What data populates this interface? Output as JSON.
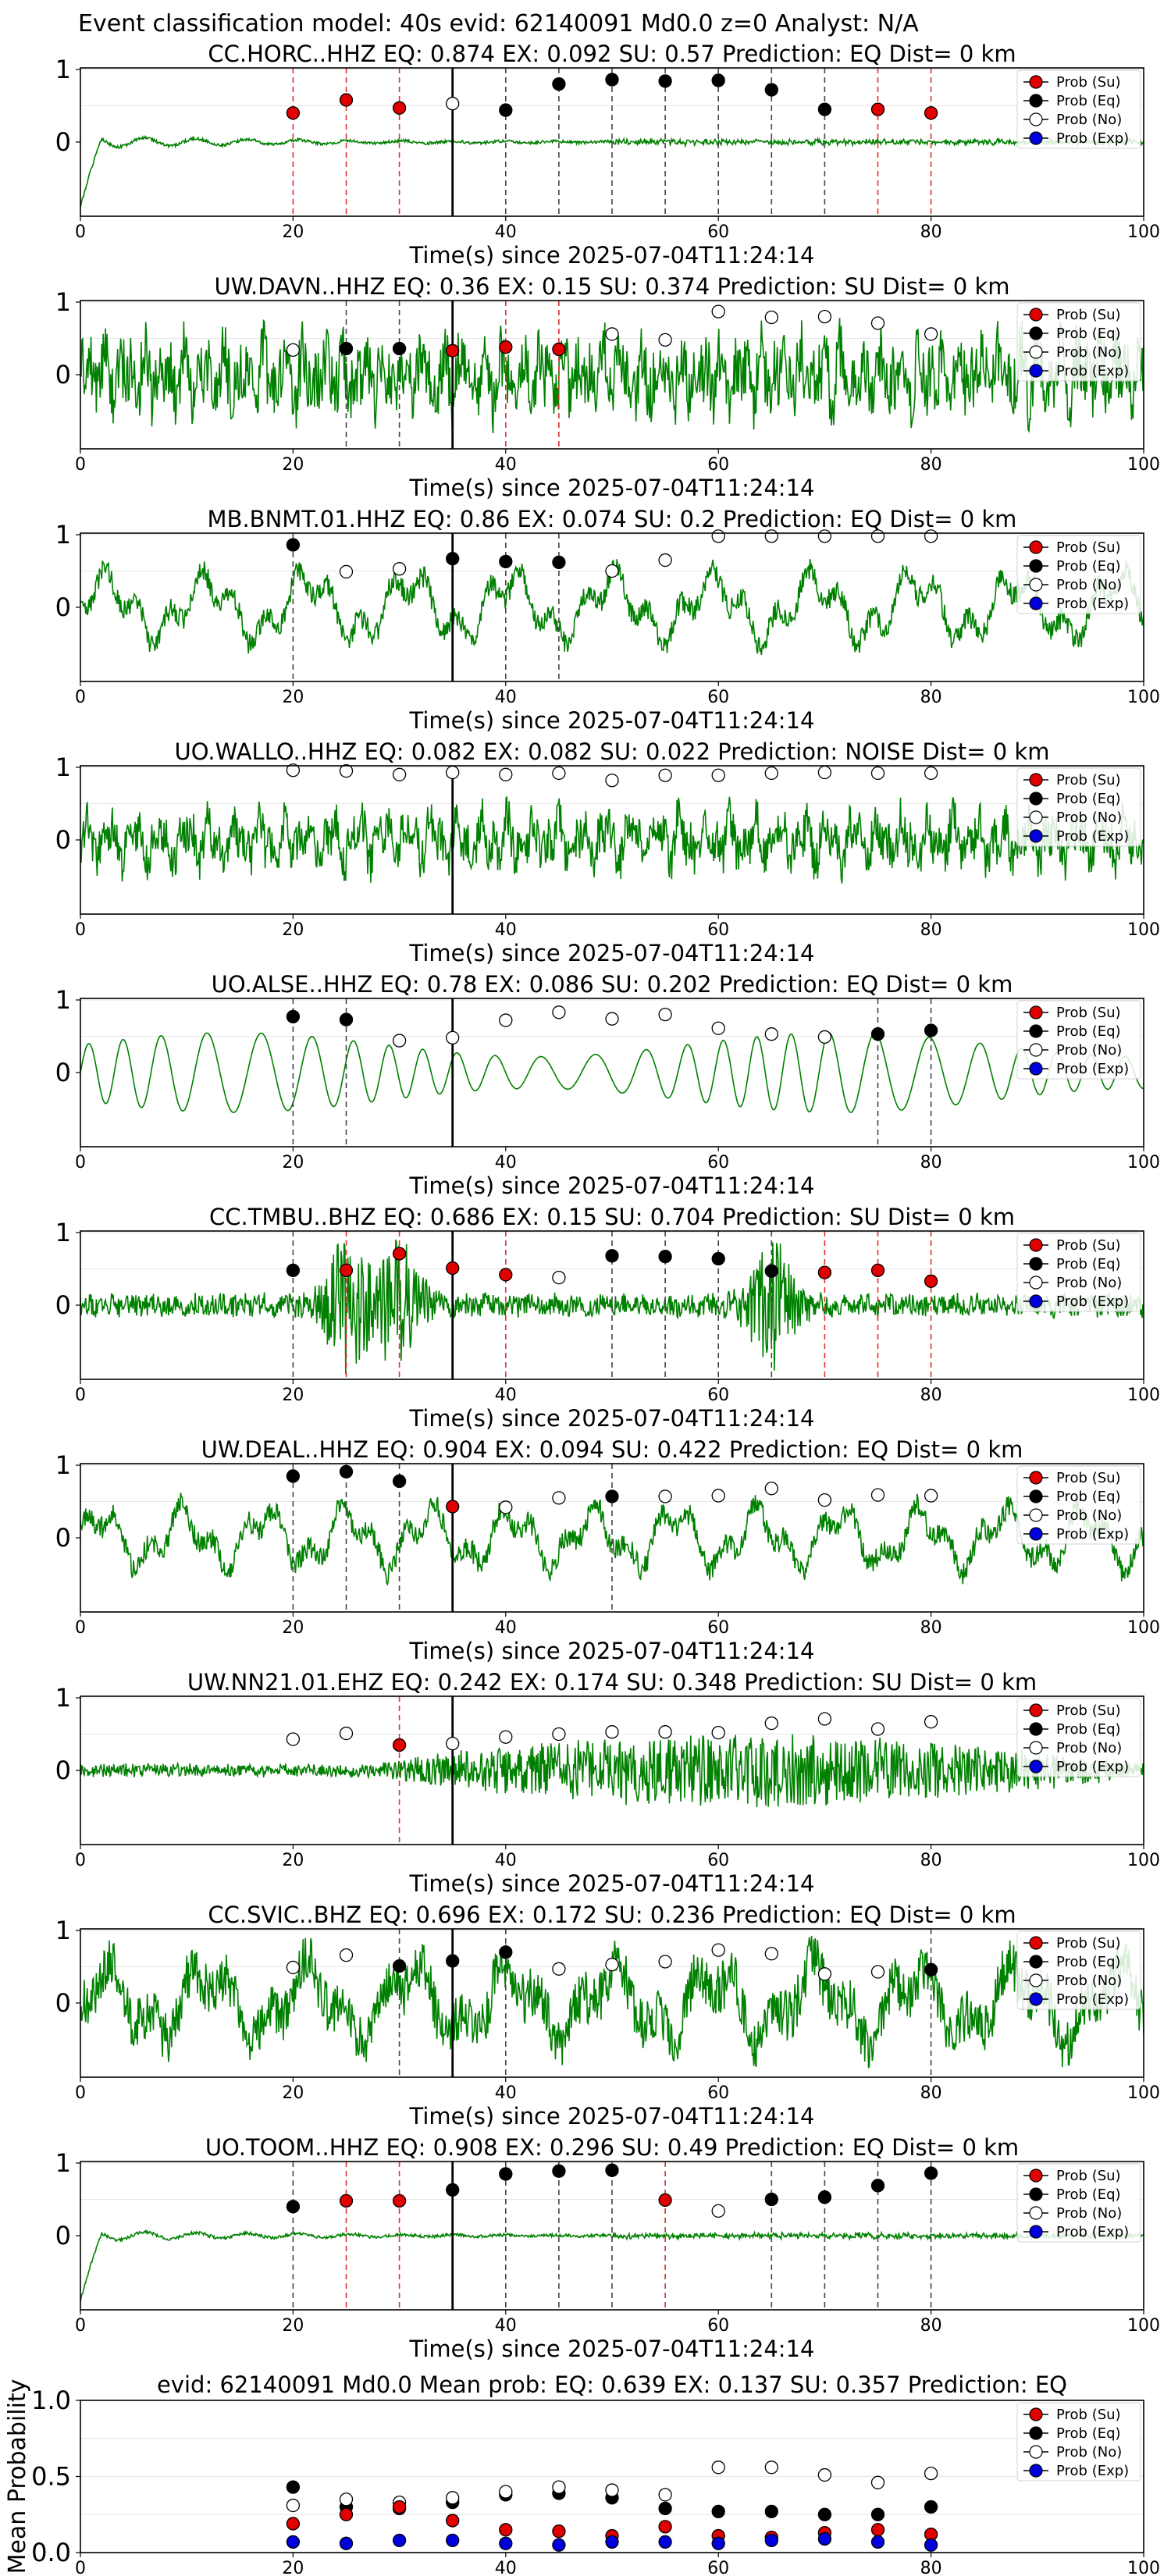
{
  "figure": {
    "suptitle": "Event classification model: 40s evid: 62140091 Md0.0 z=0 Analyst: N/A"
  },
  "chart_data": {
    "type": "scatter",
    "x_axis": {
      "range": [
        0,
        100
      ],
      "ticks": [
        0,
        20,
        40,
        60,
        80,
        100
      ]
    },
    "window_times": [
      20,
      25,
      30,
      35,
      40,
      45,
      50,
      55,
      60,
      65,
      70,
      75,
      80
    ],
    "pick_time": 35,
    "legend": {
      "placement": "top-right",
      "entries": [
        "Prob (Su)",
        "Prob (Eq)",
        "Prob (No)",
        "Prob (Exp)"
      ]
    },
    "colors": {
      "su": "#e00000",
      "eq": "#000000",
      "no": "#ffffff",
      "exp": "#0000dd",
      "trace": "#008000",
      "dashed_eq": "#444444",
      "dashed_su": "#e03030"
    },
    "panels": [
      {
        "title": "CC.HORC..HHZ   EQ: 0.874  EX: 0.092  SU: 0.57   Prediction: EQ    Dist= 0 km",
        "xlabel": "Time(s) since 2025-07-04T11:24:14",
        "y_ticks": [
          "1",
          "0"
        ],
        "trace": {
          "style": "decay",
          "amp": 0.08,
          "noise": 0.02,
          "seed": 1
        },
        "points": [
          {
            "t": 20,
            "cls": "su",
            "p": 0.4
          },
          {
            "t": 25,
            "cls": "su",
            "p": 0.58
          },
          {
            "t": 30,
            "cls": "su",
            "p": 0.47
          },
          {
            "t": 35,
            "cls": "no",
            "p": 0.53
          },
          {
            "t": 40,
            "cls": "eq",
            "p": 0.44
          },
          {
            "t": 45,
            "cls": "eq",
            "p": 0.8
          },
          {
            "t": 50,
            "cls": "eq",
            "p": 0.86
          },
          {
            "t": 55,
            "cls": "eq",
            "p": 0.84
          },
          {
            "t": 60,
            "cls": "eq",
            "p": 0.85
          },
          {
            "t": 65,
            "cls": "eq",
            "p": 0.72
          },
          {
            "t": 70,
            "cls": "eq",
            "p": 0.45
          },
          {
            "t": 75,
            "cls": "su",
            "p": 0.45
          },
          {
            "t": 80,
            "cls": "su",
            "p": 0.4
          }
        ]
      },
      {
        "title": "UW.DAVN..HHZ   EQ: 0.36  EX: 0.15  SU: 0.374   Prediction: SU    Dist= 0 km",
        "xlabel": "Time(s) since 2025-07-04T11:24:14",
        "y_ticks": [
          "1",
          "0"
        ],
        "trace": {
          "style": "noise",
          "amp": 0.75,
          "noise": 0.9,
          "seed": 2
        },
        "points": [
          {
            "t": 20,
            "cls": "no",
            "p": 0.34
          },
          {
            "t": 25,
            "cls": "eq",
            "p": 0.36
          },
          {
            "t": 30,
            "cls": "eq",
            "p": 0.36
          },
          {
            "t": 35,
            "cls": "su",
            "p": 0.33
          },
          {
            "t": 40,
            "cls": "su",
            "p": 0.38
          },
          {
            "t": 45,
            "cls": "su",
            "p": 0.35
          },
          {
            "t": 50,
            "cls": "no",
            "p": 0.56
          },
          {
            "t": 55,
            "cls": "no",
            "p": 0.48
          },
          {
            "t": 60,
            "cls": "no",
            "p": 0.87
          },
          {
            "t": 65,
            "cls": "no",
            "p": 0.79
          },
          {
            "t": 70,
            "cls": "no",
            "p": 0.8
          },
          {
            "t": 75,
            "cls": "no",
            "p": 0.71
          },
          {
            "t": 80,
            "cls": "no",
            "p": 0.56
          }
        ]
      },
      {
        "title": "MB.BNMT.01.HHZ   EQ: 0.86  EX: 0.074  SU: 0.2   Prediction: EQ    Dist= 0 km",
        "xlabel": "Time(s) since 2025-07-04T11:24:14",
        "y_ticks": [
          "1",
          "0"
        ],
        "trace": {
          "style": "wavy",
          "amp": 0.5,
          "noise": 0.15,
          "seed": 3
        },
        "points": [
          {
            "t": 20,
            "cls": "eq",
            "p": 0.86
          },
          {
            "t": 25,
            "cls": "no",
            "p": 0.49
          },
          {
            "t": 30,
            "cls": "no",
            "p": 0.53
          },
          {
            "t": 35,
            "cls": "eq",
            "p": 0.67
          },
          {
            "t": 40,
            "cls": "eq",
            "p": 0.63
          },
          {
            "t": 45,
            "cls": "eq",
            "p": 0.62
          },
          {
            "t": 50,
            "cls": "no",
            "p": 0.5
          },
          {
            "t": 55,
            "cls": "no",
            "p": 0.65
          },
          {
            "t": 60,
            "cls": "no",
            "p": 0.98
          },
          {
            "t": 65,
            "cls": "no",
            "p": 0.98
          },
          {
            "t": 70,
            "cls": "no",
            "p": 0.98
          },
          {
            "t": 75,
            "cls": "no",
            "p": 0.98
          },
          {
            "t": 80,
            "cls": "no",
            "p": 0.98
          }
        ]
      },
      {
        "title": "UO.WALLO..HHZ   EQ: 0.082  EX: 0.082  SU: 0.022   Prediction: NOISE    Dist= 0 km",
        "xlabel": "Time(s) since 2025-07-04T11:24:14",
        "y_ticks": [
          "1",
          "0"
        ],
        "trace": {
          "style": "noise",
          "amp": 0.65,
          "noise": 0.6,
          "seed": 4
        },
        "points": [
          {
            "t": 20,
            "cls": "no",
            "p": 0.96
          },
          {
            "t": 25,
            "cls": "no",
            "p": 0.95
          },
          {
            "t": 30,
            "cls": "no",
            "p": 0.9
          },
          {
            "t": 35,
            "cls": "no",
            "p": 0.93
          },
          {
            "t": 40,
            "cls": "no",
            "p": 0.9
          },
          {
            "t": 45,
            "cls": "no",
            "p": 0.92
          },
          {
            "t": 50,
            "cls": "no",
            "p": 0.82
          },
          {
            "t": 55,
            "cls": "no",
            "p": 0.89
          },
          {
            "t": 60,
            "cls": "no",
            "p": 0.89
          },
          {
            "t": 65,
            "cls": "no",
            "p": 0.92
          },
          {
            "t": 70,
            "cls": "no",
            "p": 0.93
          },
          {
            "t": 75,
            "cls": "no",
            "p": 0.92
          },
          {
            "t": 80,
            "cls": "no",
            "p": 0.92
          }
        ]
      },
      {
        "title": "UO.ALSE..HHZ   EQ: 0.78  EX: 0.086  SU: 0.202   Prediction: EQ    Dist= 0 km",
        "xlabel": "Time(s) since 2025-07-04T11:24:14",
        "y_ticks": [
          "1",
          "0"
        ],
        "trace": {
          "style": "smooth",
          "amp": 0.55,
          "noise": 0.02,
          "seed": 5
        },
        "points": [
          {
            "t": 20,
            "cls": "eq",
            "p": 0.77
          },
          {
            "t": 25,
            "cls": "eq",
            "p": 0.73
          },
          {
            "t": 30,
            "cls": "no",
            "p": 0.44
          },
          {
            "t": 35,
            "cls": "no",
            "p": 0.48
          },
          {
            "t": 40,
            "cls": "no",
            "p": 0.72
          },
          {
            "t": 45,
            "cls": "no",
            "p": 0.83
          },
          {
            "t": 50,
            "cls": "no",
            "p": 0.74
          },
          {
            "t": 55,
            "cls": "no",
            "p": 0.8
          },
          {
            "t": 60,
            "cls": "no",
            "p": 0.61
          },
          {
            "t": 65,
            "cls": "no",
            "p": 0.53
          },
          {
            "t": 70,
            "cls": "no",
            "p": 0.49
          },
          {
            "t": 75,
            "cls": "eq",
            "p": 0.53
          },
          {
            "t": 80,
            "cls": "eq",
            "p": 0.58
          }
        ]
      },
      {
        "title": "CC.TMBU..BHZ   EQ: 0.686  EX: 0.15  SU: 0.704   Prediction: SU    Dist= 0 km",
        "xlabel": "Time(s) since 2025-07-04T11:24:14",
        "y_ticks": [
          "1",
          "0"
        ],
        "trace": {
          "style": "bursts",
          "amp": 0.15,
          "noise": 0.1,
          "seed": 6
        },
        "points": [
          {
            "t": 20,
            "cls": "eq",
            "p": 0.48
          },
          {
            "t": 25,
            "cls": "su",
            "p": 0.48
          },
          {
            "t": 30,
            "cls": "su",
            "p": 0.71
          },
          {
            "t": 35,
            "cls": "su",
            "p": 0.51
          },
          {
            "t": 40,
            "cls": "su",
            "p": 0.42
          },
          {
            "t": 45,
            "cls": "no",
            "p": 0.38
          },
          {
            "t": 50,
            "cls": "eq",
            "p": 0.68
          },
          {
            "t": 55,
            "cls": "eq",
            "p": 0.67
          },
          {
            "t": 60,
            "cls": "eq",
            "p": 0.64
          },
          {
            "t": 65,
            "cls": "eq",
            "p": 0.47
          },
          {
            "t": 70,
            "cls": "su",
            "p": 0.45
          },
          {
            "t": 75,
            "cls": "su",
            "p": 0.48
          },
          {
            "t": 80,
            "cls": "su",
            "p": 0.33
          }
        ]
      },
      {
        "title": "UW.DEAL..HHZ   EQ: 0.904  EX: 0.094  SU: 0.422   Prediction: EQ    Dist= 0 km",
        "xlabel": "Time(s) since 2025-07-04T11:24:14",
        "y_ticks": [
          "1",
          "0"
        ],
        "trace": {
          "style": "wavy",
          "amp": 0.45,
          "noise": 0.15,
          "seed": 7
        },
        "points": [
          {
            "t": 20,
            "cls": "eq",
            "p": 0.85
          },
          {
            "t": 25,
            "cls": "eq",
            "p": 0.91
          },
          {
            "t": 30,
            "cls": "eq",
            "p": 0.78
          },
          {
            "t": 35,
            "cls": "su",
            "p": 0.43
          },
          {
            "t": 40,
            "cls": "no",
            "p": 0.42
          },
          {
            "t": 45,
            "cls": "no",
            "p": 0.55
          },
          {
            "t": 50,
            "cls": "eq",
            "p": 0.57
          },
          {
            "t": 55,
            "cls": "no",
            "p": 0.57
          },
          {
            "t": 60,
            "cls": "no",
            "p": 0.58
          },
          {
            "t": 65,
            "cls": "no",
            "p": 0.68
          },
          {
            "t": 70,
            "cls": "no",
            "p": 0.52
          },
          {
            "t": 75,
            "cls": "no",
            "p": 0.59
          },
          {
            "t": 80,
            "cls": "no",
            "p": 0.58
          }
        ]
      },
      {
        "title": "UW.NN21.01.EHZ   EQ: 0.242  EX: 0.174  SU: 0.348   Prediction: SU    Dist= 0 km",
        "xlabel": "Time(s) since 2025-07-04T11:24:14",
        "y_ticks": [
          "1",
          "0"
        ],
        "trace": {
          "style": "growing",
          "amp": 0.5,
          "noise": 0.6,
          "seed": 8
        },
        "points": [
          {
            "t": 20,
            "cls": "no",
            "p": 0.43
          },
          {
            "t": 25,
            "cls": "no",
            "p": 0.51
          },
          {
            "t": 30,
            "cls": "su",
            "p": 0.35
          },
          {
            "t": 35,
            "cls": "no",
            "p": 0.37
          },
          {
            "t": 40,
            "cls": "no",
            "p": 0.46
          },
          {
            "t": 45,
            "cls": "no",
            "p": 0.5
          },
          {
            "t": 50,
            "cls": "no",
            "p": 0.53
          },
          {
            "t": 55,
            "cls": "no",
            "p": 0.53
          },
          {
            "t": 60,
            "cls": "no",
            "p": 0.52
          },
          {
            "t": 65,
            "cls": "no",
            "p": 0.65
          },
          {
            "t": 70,
            "cls": "no",
            "p": 0.71
          },
          {
            "t": 75,
            "cls": "no",
            "p": 0.57
          },
          {
            "t": 80,
            "cls": "no",
            "p": 0.67
          }
        ]
      },
      {
        "title": "CC.SVIC..BHZ   EQ: 0.696  EX: 0.172  SU: 0.236   Prediction: EQ    Dist= 0 km",
        "xlabel": "Time(s) since 2025-07-04T11:24:14",
        "y_ticks": [
          "1",
          "0"
        ],
        "trace": {
          "style": "wavy",
          "amp": 0.55,
          "noise": 0.35,
          "seed": 9
        },
        "points": [
          {
            "t": 20,
            "cls": "no",
            "p": 0.49
          },
          {
            "t": 25,
            "cls": "no",
            "p": 0.66
          },
          {
            "t": 30,
            "cls": "eq",
            "p": 0.51
          },
          {
            "t": 35,
            "cls": "eq",
            "p": 0.58
          },
          {
            "t": 40,
            "cls": "eq",
            "p": 0.7
          },
          {
            "t": 45,
            "cls": "no",
            "p": 0.47
          },
          {
            "t": 50,
            "cls": "no",
            "p": 0.53
          },
          {
            "t": 55,
            "cls": "no",
            "p": 0.57
          },
          {
            "t": 60,
            "cls": "no",
            "p": 0.73
          },
          {
            "t": 65,
            "cls": "no",
            "p": 0.68
          },
          {
            "t": 70,
            "cls": "no",
            "p": 0.4
          },
          {
            "t": 75,
            "cls": "no",
            "p": 0.43
          },
          {
            "t": 80,
            "cls": "eq",
            "p": 0.46
          }
        ]
      },
      {
        "title": "UO.TOOM..HHZ   EQ: 0.908  EX: 0.296  SU: 0.49   Prediction: EQ    Dist= 0 km",
        "xlabel": "Time(s) since 2025-07-04T11:24:14",
        "y_ticks": [
          "1",
          "0"
        ],
        "trace": {
          "style": "decay",
          "amp": 0.07,
          "noise": 0.02,
          "seed": 10
        },
        "points": [
          {
            "t": 20,
            "cls": "eq",
            "p": 0.4
          },
          {
            "t": 25,
            "cls": "su",
            "p": 0.48
          },
          {
            "t": 30,
            "cls": "su",
            "p": 0.48
          },
          {
            "t": 35,
            "cls": "eq",
            "p": 0.63
          },
          {
            "t": 40,
            "cls": "eq",
            "p": 0.85
          },
          {
            "t": 45,
            "cls": "eq",
            "p": 0.89
          },
          {
            "t": 50,
            "cls": "eq",
            "p": 0.9
          },
          {
            "t": 55,
            "cls": "su",
            "p": 0.49
          },
          {
            "t": 60,
            "cls": "no",
            "p": 0.34
          },
          {
            "t": 65,
            "cls": "eq",
            "p": 0.5
          },
          {
            "t": 70,
            "cls": "eq",
            "p": 0.53
          },
          {
            "t": 75,
            "cls": "eq",
            "p": 0.69
          },
          {
            "t": 80,
            "cls": "eq",
            "p": 0.86
          }
        ]
      }
    ],
    "mean_panel": {
      "title": "evid: 62140091  Md0.0   Mean prob:   EQ: 0.639  EX: 0.137  SU: 0.357   Prediction: EQ",
      "ylabel": "Mean Probability",
      "ylim": [
        0,
        1
      ],
      "y_ticks": [
        "0.0",
        "0.5",
        "1.0"
      ],
      "series": [
        {
          "cls": "eq",
          "values": [
            0.43,
            0.3,
            0.29,
            0.33,
            0.38,
            0.39,
            0.36,
            0.29,
            0.27,
            0.27,
            0.25,
            0.25,
            0.3
          ]
        },
        {
          "cls": "no",
          "values": [
            0.31,
            0.35,
            0.33,
            0.36,
            0.4,
            0.43,
            0.41,
            0.38,
            0.56,
            0.56,
            0.51,
            0.46,
            0.52
          ]
        },
        {
          "cls": "su",
          "values": [
            0.19,
            0.25,
            0.3,
            0.21,
            0.15,
            0.14,
            0.11,
            0.17,
            0.11,
            0.1,
            0.13,
            0.15,
            0.12
          ]
        },
        {
          "cls": "exp",
          "values": [
            0.07,
            0.06,
            0.08,
            0.08,
            0.06,
            0.05,
            0.07,
            0.07,
            0.06,
            0.08,
            0.09,
            0.07,
            0.05
          ]
        }
      ]
    }
  }
}
